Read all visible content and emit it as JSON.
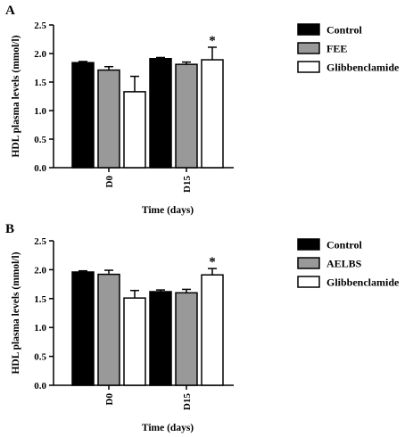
{
  "chart_data": [
    {
      "panel": "A",
      "type": "bar",
      "xlabel": "Time (days)",
      "ylabel": "HDL plasma levels (mmol/l)",
      "categories": [
        "D0",
        "D15"
      ],
      "ylim": [
        0,
        2.5
      ],
      "yticks": [
        "0.0",
        "0.5",
        "1.0",
        "1.5",
        "2.0",
        "2.5"
      ],
      "series": [
        {
          "name": "Control",
          "values": [
            1.84,
            1.91
          ],
          "errors": [
            0.02,
            0.02
          ],
          "fill": "#000000"
        },
        {
          "name": "FEE",
          "values": [
            1.71,
            1.81
          ],
          "errors": [
            0.06,
            0.04
          ],
          "fill": "#999999"
        },
        {
          "name": "Glibbenclamide",
          "values": [
            1.33,
            1.89
          ],
          "errors": [
            0.27,
            0.22
          ],
          "fill": "#ffffff"
        }
      ],
      "annotations": [
        {
          "category": "D15",
          "series": "Glibbenclamide",
          "text": "*"
        }
      ],
      "legend": "right"
    },
    {
      "panel": "B",
      "type": "bar",
      "xlabel": "Time (days)",
      "ylabel": "HDL plasma levels (mmol/l)",
      "categories": [
        "D0",
        "D15"
      ],
      "ylim": [
        0,
        2.5
      ],
      "yticks": [
        "0.0",
        "0.5",
        "1.0",
        "1.5",
        "2.0",
        "2.5"
      ],
      "series": [
        {
          "name": "Control",
          "values": [
            1.96,
            1.62
          ],
          "errors": [
            0.02,
            0.03
          ],
          "fill": "#000000"
        },
        {
          "name": "AELBS",
          "values": [
            1.92,
            1.6
          ],
          "errors": [
            0.07,
            0.06
          ],
          "fill": "#999999"
        },
        {
          "name": "Glibbenclamide",
          "values": [
            1.51,
            1.91
          ],
          "errors": [
            0.13,
            0.11
          ],
          "fill": "#ffffff"
        }
      ],
      "annotations": [
        {
          "category": "D15",
          "series": "Glibbenclamide",
          "text": "*"
        }
      ],
      "legend": "right"
    }
  ]
}
